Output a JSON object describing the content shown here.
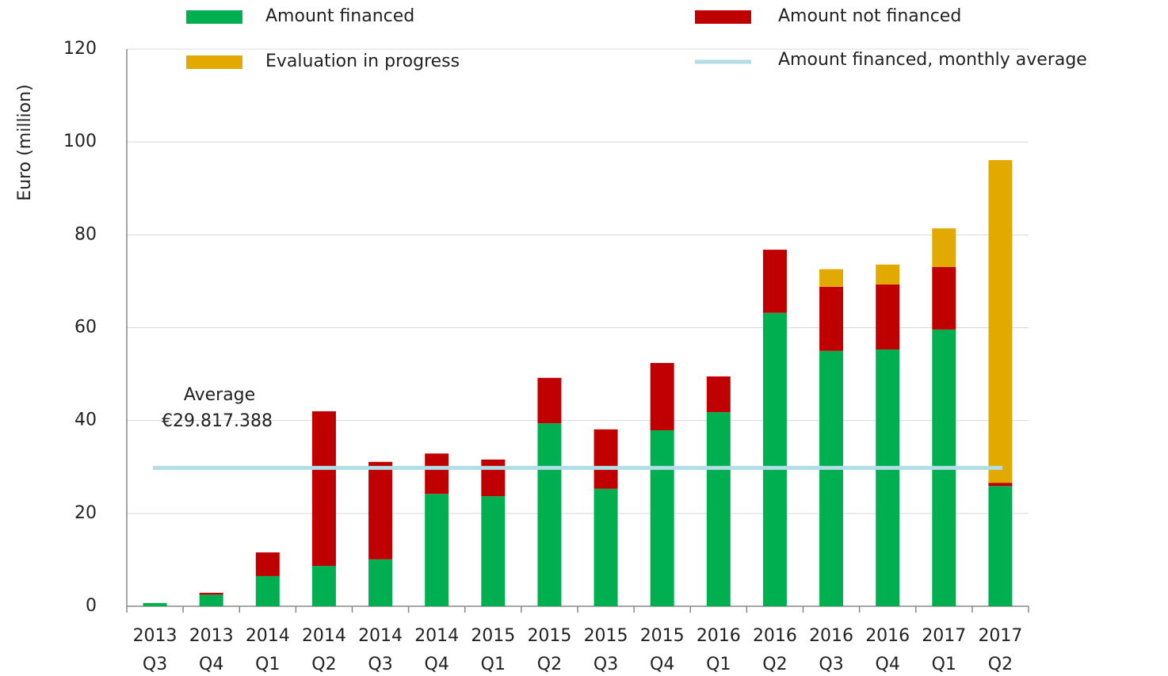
{
  "chart_data": {
    "type": "stacked_bar",
    "y_label": "Euro (million)",
    "categories": [
      "2013 Q3",
      "2013 Q4",
      "2014 Q1",
      "2014 Q2",
      "2014 Q3",
      "2014 Q4",
      "2015 Q1",
      "2015 Q2",
      "2015 Q3",
      "2015 Q4",
      "2016 Q1",
      "2016 Q2",
      "2016 Q3",
      "2016 Q4",
      "2017 Q1",
      "2017 Q2"
    ],
    "series": [
      {
        "name": "Amount financed",
        "color": "#00b050",
        "values": [
          0.7,
          2.5,
          6.5,
          8.7,
          10.1,
          24.2,
          23.7,
          39.4,
          25.3,
          37.9,
          41.8,
          63.2,
          55.0,
          55.3,
          59.6,
          25.9
        ]
      },
      {
        "name": "Amount not financed",
        "color": "#c00000",
        "values": [
          0,
          0.4,
          5.1,
          33.3,
          21.0,
          8.7,
          7.9,
          9.8,
          12.8,
          14.5,
          7.7,
          13.6,
          13.8,
          14.0,
          13.5,
          0.7
        ]
      },
      {
        "name": "Evaluation in progress",
        "color": "#e2aa00",
        "values": [
          0,
          0,
          0,
          0,
          0,
          0,
          0,
          0,
          0,
          0,
          0,
          0,
          3.8,
          4.3,
          8.3,
          69.5
        ]
      }
    ],
    "average": {
      "name": "Amount financed, monthly average",
      "color": "#b0dde6",
      "value": 29.817388,
      "label": "Average",
      "value_label": "€29.817.388"
    },
    "ylim": [
      0,
      120
    ],
    "yticks": [
      0,
      20,
      40,
      60,
      80,
      100,
      120
    ],
    "grid": true
  }
}
